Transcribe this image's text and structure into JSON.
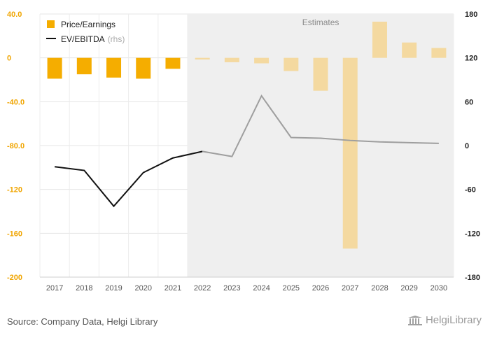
{
  "chart_data": {
    "type": "bar",
    "categories": [
      "2017",
      "2018",
      "2019",
      "2020",
      "2021",
      "2022",
      "2023",
      "2024",
      "2025",
      "2026",
      "2027",
      "2028",
      "2029",
      "2030"
    ],
    "series": [
      {
        "name": "Price/Earnings",
        "type": "bar",
        "axis": "left",
        "values": [
          -19,
          -15,
          -18,
          -19,
          -10,
          -1.5,
          -4,
          -5,
          -12,
          -30,
          -174,
          33,
          14,
          9
        ],
        "color": "#f5ad00",
        "estimate_color": "#f4d9a0"
      },
      {
        "name": "EV/EBITDA",
        "name_suffix": "(rhs)",
        "type": "line",
        "axis": "right",
        "values": [
          -29,
          -34,
          -83,
          -37,
          -17,
          -8,
          -15,
          68,
          11,
          10,
          7,
          5,
          4,
          3
        ],
        "color": "#111111",
        "estimate_color": "#9e9e9e"
      }
    ],
    "estimates_start_index": 5,
    "estimates_label": "Estimates",
    "ylim": [
      -200,
      40
    ],
    "yticks": [
      "40.0",
      "0",
      "-40.0",
      "-80.0",
      "-120",
      "-160",
      "-200"
    ],
    "ytick_values": [
      40,
      0,
      -40,
      -80,
      -120,
      -160,
      -200
    ],
    "y2lim": [
      -180,
      180
    ],
    "y2ticks": [
      "180",
      "120",
      "60",
      "0",
      "-60",
      "-120",
      "-180"
    ],
    "y2tick_values": [
      180,
      120,
      60,
      0,
      -60,
      -120,
      -180
    ],
    "grid": true,
    "legend_position": "top-left"
  },
  "footer": {
    "source": "Source: Company Data, Helgi Library",
    "logo": "HelgiLibrary",
    "logo_icon": "library-building-icon"
  }
}
